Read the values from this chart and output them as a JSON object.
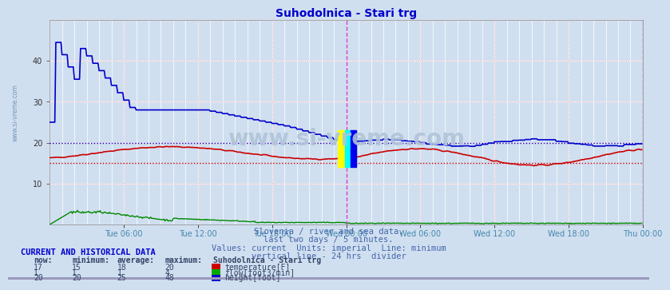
{
  "title": "Suhodolnica - Stari trg",
  "title_color": "#0000cc",
  "bg_color": "#d0dff0",
  "plot_bg_color": "#d0dff0",
  "ylim": [
    0,
    50
  ],
  "yticks": [
    10,
    20,
    30,
    40
  ],
  "xlabel_color": "#4488aa",
  "watermark": "www.si-vreme.com",
  "subtitle_lines": [
    "Slovenia / river and sea data.",
    "last two days / 5 minutes.",
    "Values: current  Units: imperial  Line: minimum",
    "vertical line - 24 hrs  divider"
  ],
  "subtitle_color": "#4466aa",
  "table_header": "CURRENT AND HISTORICAL DATA",
  "table_header_color": "#0000cc",
  "table_col_labels": [
    "now:",
    "minimum:",
    "average:",
    "maximum:",
    "Suhodolnica - Stari trg"
  ],
  "table_rows": [
    {
      "values": [
        "17",
        "15",
        "18",
        "20"
      ],
      "color": "#cc0000",
      "label": "temperature[F]"
    },
    {
      "values": [
        "1",
        "1",
        "1",
        "4"
      ],
      "color": "#00aa00",
      "label": "flow[foot3/min]"
    },
    {
      "values": [
        "20",
        "20",
        "25",
        "48"
      ],
      "color": "#0000cc",
      "label": "height[foot]"
    }
  ],
  "temp_min_line": 15,
  "height_min_line": 20,
  "divider_x": 288,
  "n_points": 576,
  "temp_color": "#cc0000",
  "flow_color": "#008800",
  "height_color": "#0000cc",
  "x_tick_labels": [
    "Tue 06:00",
    "Tue 12:00",
    "Tue 18:00",
    "Wed 00:00",
    "Wed 06:00",
    "Wed 12:00",
    "Wed 18:00",
    "Thu 00:00"
  ],
  "x_tick_positions": [
    72,
    144,
    216,
    288,
    360,
    432,
    504,
    576
  ],
  "logo_color_yellow": "#ffff00",
  "logo_color_cyan": "#00ffff",
  "logo_color_blue": "#0000ee"
}
